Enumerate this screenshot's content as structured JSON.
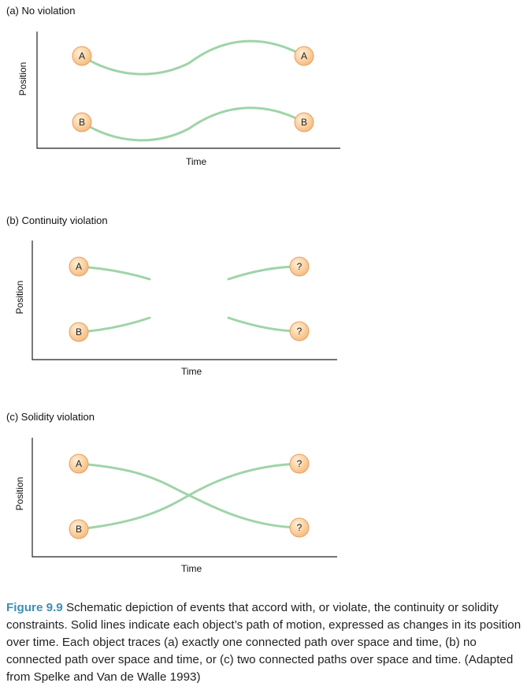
{
  "panels": [
    {
      "title": "(a) No violation",
      "y_axis_label": "Position",
      "x_axis_label": "Time",
      "start_labels": [
        "A",
        "B"
      ],
      "end_labels": [
        "A",
        "B"
      ]
    },
    {
      "title": "(b) Continuity violation",
      "y_axis_label": "Position",
      "x_axis_label": "Time",
      "start_labels": [
        "A",
        "B"
      ],
      "end_labels": [
        "?",
        "?"
      ]
    },
    {
      "title": "(c) Solidity violation",
      "y_axis_label": "Position",
      "x_axis_label": "Time",
      "start_labels": [
        "A",
        "B"
      ],
      "end_labels": [
        "?",
        "?"
      ]
    }
  ],
  "caption": {
    "label": "Figure 9.9",
    "text": "Schematic depiction of events that accord with, or violate, the continuity or solidity constraints. Solid lines indicate each object’s path of motion, expressed as changes in its position over time. Each object traces (a) exactly one connected path over space and time, (b) no connected path over space and time, or (c) two connected paths over space and time. (Adapted from Spelke and Van de Walle 1993)"
  },
  "colors": {
    "path_line": "#9fd4a8",
    "node_fill_light": "#fff2dc",
    "node_fill_dark": "#f6b877",
    "node_stroke": "#e7a063",
    "axis": "#222222",
    "caption_label": "#3d8fb3"
  }
}
